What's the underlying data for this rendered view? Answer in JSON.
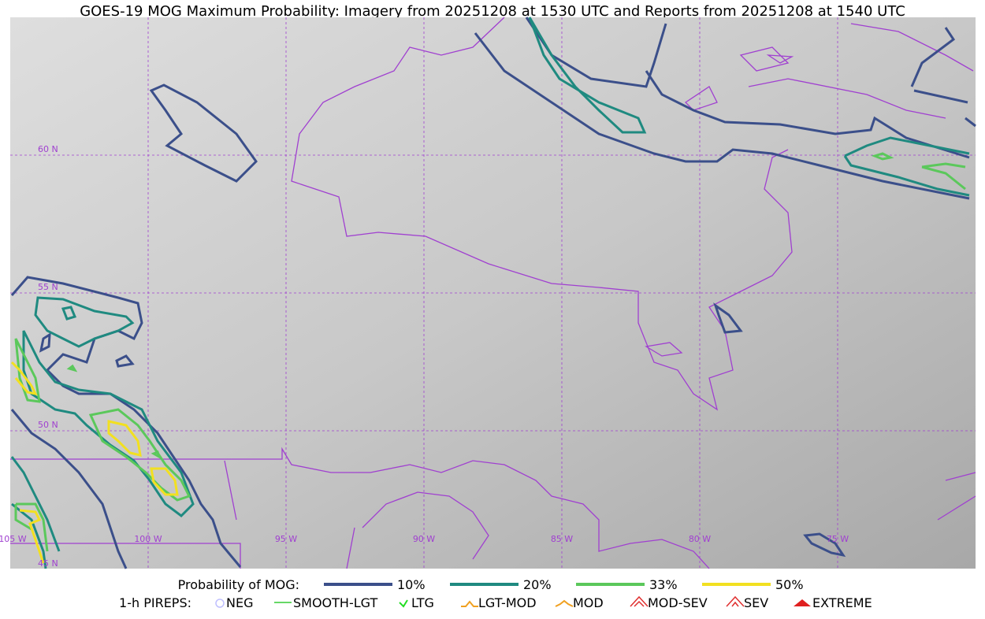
{
  "title": "GOES-19 MOG Maximum Probability: Imagery from 20251208 at 1530 UTC and Reports from 20251208 at 1540 UTC",
  "map": {
    "lat_labels": [
      "60 N",
      "55 N",
      "50 N",
      "45 N"
    ],
    "lon_labels": [
      "105 W",
      "100 W",
      "95 W",
      "90 W",
      "85 W",
      "80 W",
      "75 W"
    ]
  },
  "legend": {
    "probability": {
      "title": "Probability of MOG:",
      "items": [
        {
          "label": "10%",
          "color": "#3b4f8a"
        },
        {
          "label": "20%",
          "color": "#1f8a80"
        },
        {
          "label": "33%",
          "color": "#5bc85b"
        },
        {
          "label": "50%",
          "color": "#f2e020"
        }
      ]
    },
    "pireps": {
      "title": "1-h PIREPS:",
      "items": [
        "NEG",
        "SMOOTH-LGT",
        "LTG",
        "LGT-MOD",
        "MOD",
        "MOD-SEV",
        "SEV",
        "EXTREME"
      ]
    }
  }
}
